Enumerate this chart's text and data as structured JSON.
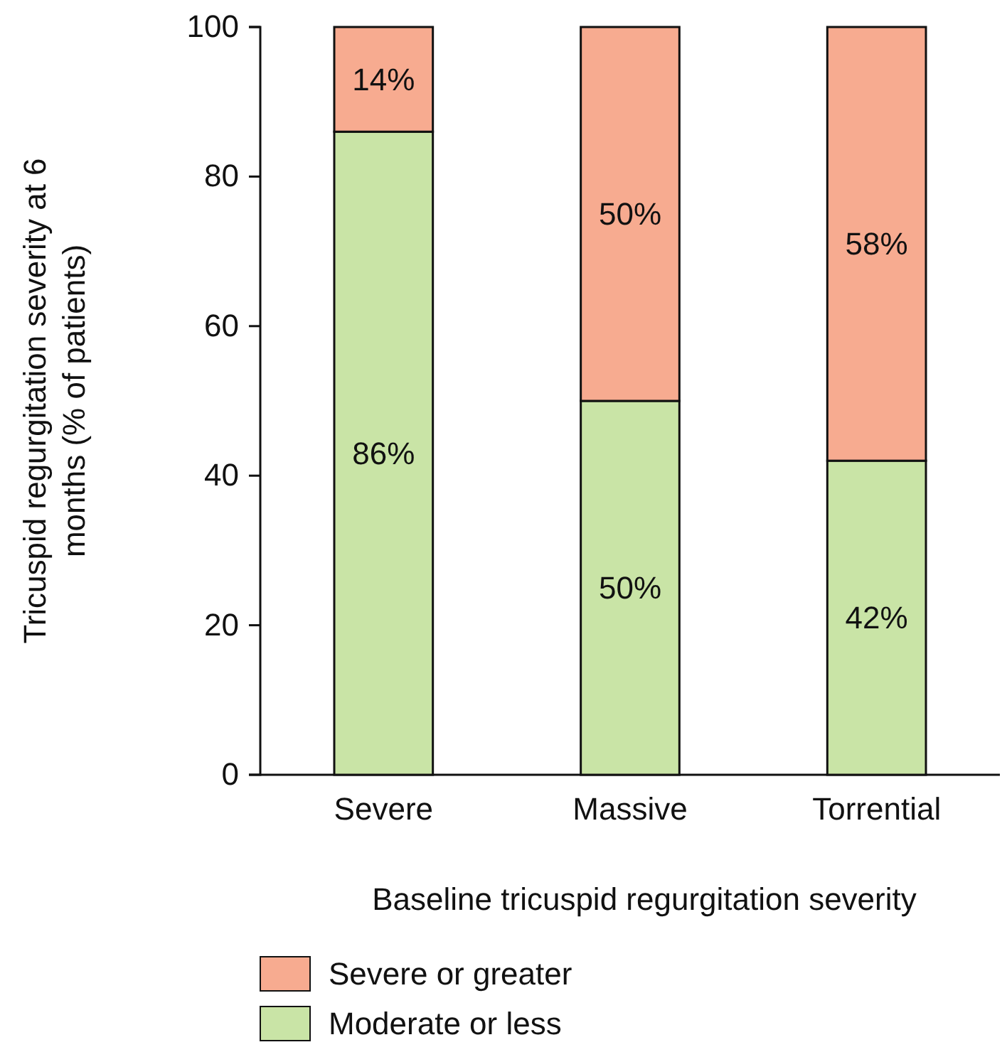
{
  "chart_data": {
    "type": "bar",
    "stacked": true,
    "categories": [
      "Severe",
      "Massive",
      "Torrential"
    ],
    "series": [
      {
        "name": "Moderate or less",
        "color": "#c9e4a6",
        "values": [
          86,
          50,
          42
        ],
        "value_labels": [
          "86%",
          "50%",
          "42%"
        ]
      },
      {
        "name": "Severe or greater",
        "color": "#f7ab90",
        "values": [
          14,
          50,
          58
        ],
        "value_labels": [
          "14%",
          "50%",
          "58%"
        ]
      }
    ],
    "xlabel": "Baseline tricuspid regurgitation severity",
    "ylabel": "Tricuspid regurgitation severity at 6 months (% of patients)",
    "ylim": [
      0,
      100
    ],
    "yticks": [
      0,
      20,
      40,
      60,
      80,
      100
    ],
    "grid": false,
    "legend": "bottom"
  }
}
